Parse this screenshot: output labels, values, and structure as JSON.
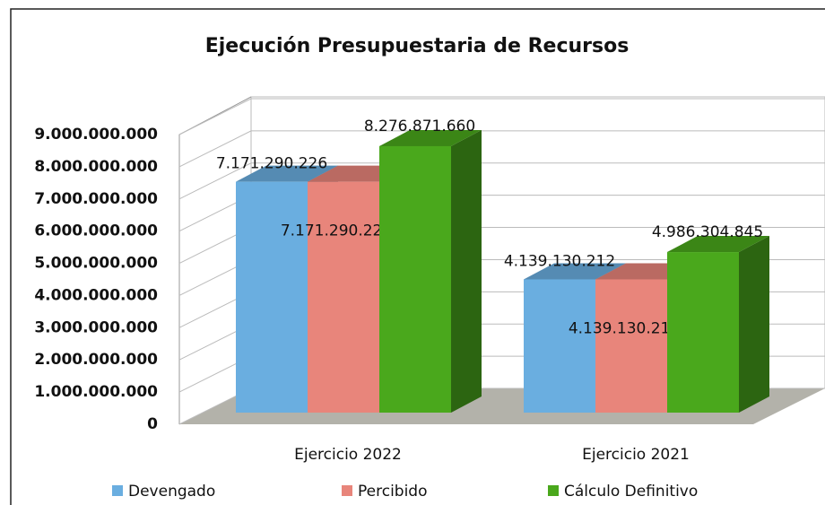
{
  "chart_data": {
    "type": "bar3d",
    "title": "Ejecución Presupuestaria de Recursos",
    "categories": [
      "Ejercicio 2022",
      "Ejercicio 2021"
    ],
    "series": [
      {
        "name": "Devengado",
        "color": "#6aaee0",
        "values": [
          7171290226,
          4139130212
        ],
        "value_labels": [
          "7.171.290.226",
          "4.139.130.212"
        ]
      },
      {
        "name": "Percibido",
        "color": "#e8857b",
        "values": [
          7171290226,
          4139130212
        ],
        "value_labels": [
          "7.171.290.226",
          "4.139.130.212"
        ]
      },
      {
        "name": "Cálculo Definitivo",
        "color": "#4aa81c",
        "values": [
          8276871660,
          4986304845
        ],
        "value_labels": [
          "8.276.871.660",
          "4.986.304.845"
        ]
      }
    ],
    "ylim": [
      0,
      9000000000
    ],
    "yticks": [
      0,
      {
        "value": 1000000000,
        "label": "1.000.000.000"
      },
      {
        "value": 2000000000,
        "label": "2.000.000.000"
      },
      {
        "value": 3000000000,
        "label": "3.000.000.000"
      },
      {
        "value": 4000000000,
        "label": "4.000.000.000"
      },
      {
        "value": 5000000000,
        "label": "5.000.000.000"
      },
      {
        "value": 6000000000,
        "label": "6.000.000.000"
      },
      {
        "value": 7000000000,
        "label": "7.000.000.000"
      },
      {
        "value": 8000000000,
        "label": "8.000.000.000"
      },
      {
        "value": 9000000000,
        "label": "9.000.000.000"
      }
    ],
    "grid": true,
    "legend": "bottom"
  }
}
